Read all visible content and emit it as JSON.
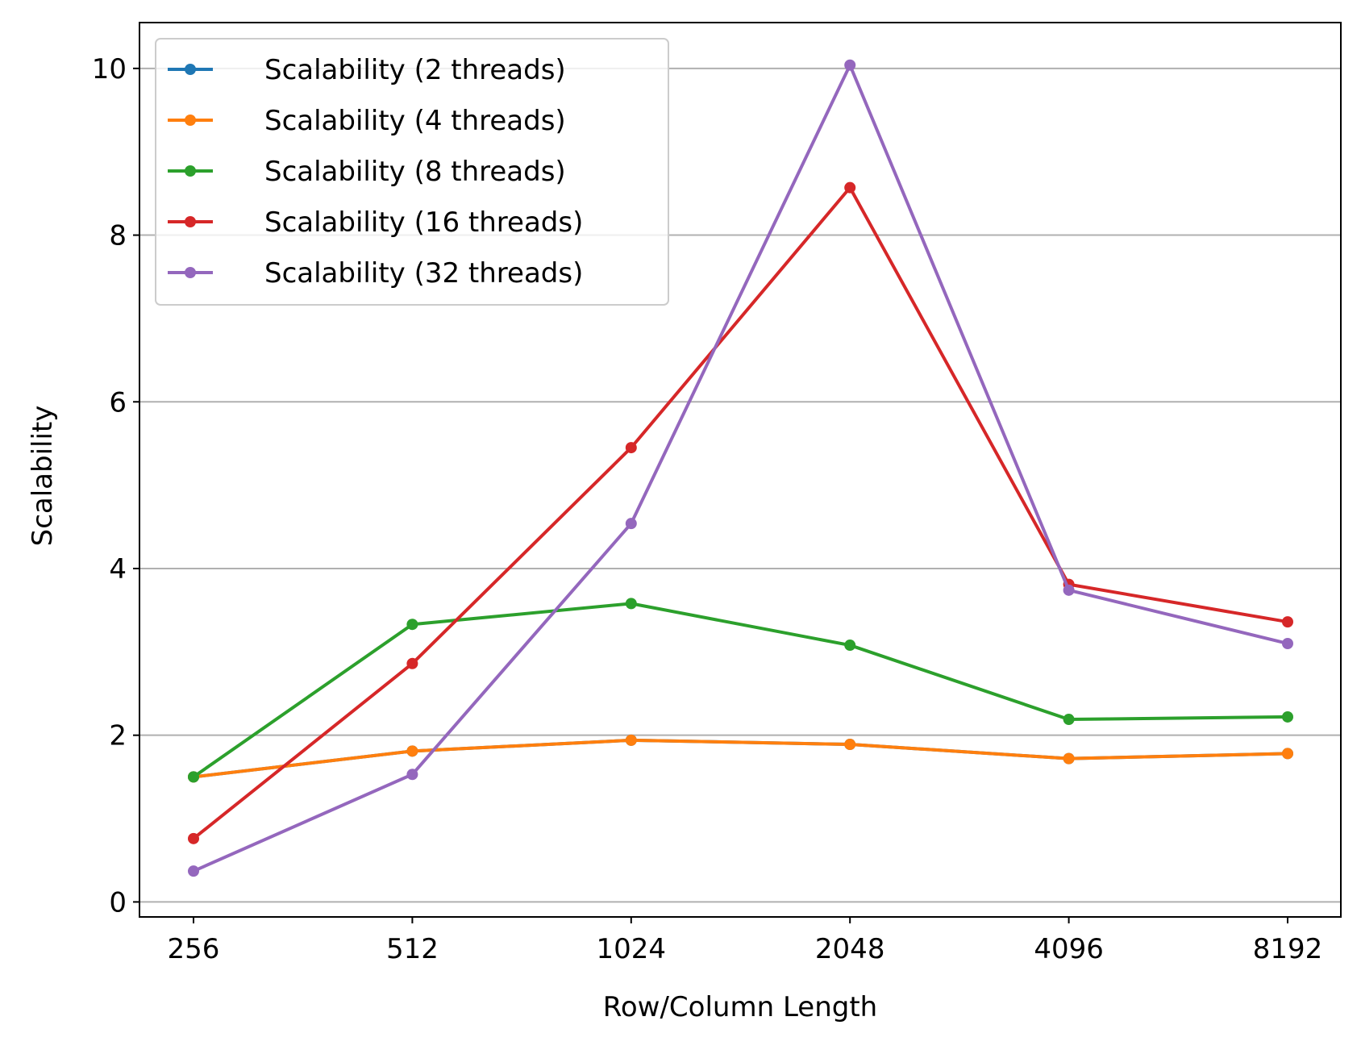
{
  "chart_data": {
    "type": "line",
    "title": "",
    "xlabel": "Row/Column Length",
    "ylabel": "Scalability",
    "categories": [
      "256",
      "512",
      "1024",
      "2048",
      "4096",
      "8192"
    ],
    "ylim": [
      -0.18,
      10.55
    ],
    "yticks": [
      "0",
      "2",
      "4",
      "6",
      "8",
      "10"
    ],
    "grid": "y-axis major",
    "legend_position": "upper-left",
    "series": [
      {
        "name": "Scalability (2 threads)",
        "color": "#1f77b4",
        "values": [
          1.5,
          1.81,
          1.94,
          1.89,
          1.72,
          1.78
        ]
      },
      {
        "name": "Scalability (4 threads)",
        "color": "#ff7f0e",
        "values": [
          1.5,
          1.81,
          1.94,
          1.89,
          1.72,
          1.78
        ]
      },
      {
        "name": "Scalability (8 threads)",
        "color": "#2ca02c",
        "values": [
          1.5,
          3.33,
          3.58,
          3.08,
          2.19,
          2.22
        ]
      },
      {
        "name": "Scalability (16 threads)",
        "color": "#d62728",
        "values": [
          0.76,
          2.86,
          5.45,
          8.57,
          3.81,
          3.36
        ]
      },
      {
        "name": "Scalability (32 threads)",
        "color": "#9467bd",
        "values": [
          0.37,
          1.53,
          4.54,
          10.04,
          3.74,
          3.1
        ]
      }
    ]
  }
}
